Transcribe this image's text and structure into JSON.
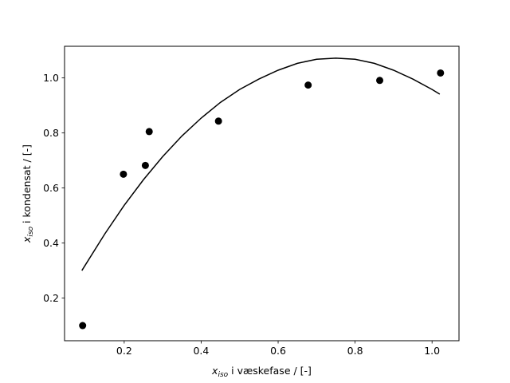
{
  "chart_data": {
    "type": "scatter",
    "title": "",
    "xlabel": {
      "var": "x",
      "sub": "iso",
      "rest": " i væskefase / [-]"
    },
    "ylabel": {
      "var": "x",
      "sub": "iso",
      "rest": " i kondensat / [-]"
    },
    "xlim": [
      0.045,
      1.07
    ],
    "ylim": [
      0.045,
      1.115
    ],
    "xticks": [
      0.2,
      0.4,
      0.6,
      0.8,
      1.0
    ],
    "yticks": [
      0.2,
      0.4,
      0.6,
      0.8,
      1.0
    ],
    "xtick_labels": [
      "0.2",
      "0.4",
      "0.6",
      "0.8",
      "1.0"
    ],
    "ytick_labels": [
      "0.2",
      "0.4",
      "0.6",
      "0.8",
      "1.0"
    ],
    "grid": false,
    "legend": false,
    "colors": {
      "points": "#000000",
      "curve": "#000000",
      "axes": "#000000"
    },
    "series": [
      {
        "type": "scatter",
        "x": [
          0.092,
          0.198,
          0.255,
          0.265,
          0.445,
          0.678,
          0.864,
          1.022
        ],
        "y": [
          0.1,
          0.65,
          0.682,
          0.805,
          0.843,
          0.974,
          0.991,
          1.018
        ]
      },
      {
        "type": "line",
        "x": [
          0.09,
          0.15,
          0.2,
          0.25,
          0.3,
          0.35,
          0.4,
          0.45,
          0.5,
          0.55,
          0.6,
          0.65,
          0.7,
          0.75,
          0.8,
          0.85,
          0.9,
          0.95,
          1.0,
          1.02
        ],
        "y": [
          0.3,
          0.434,
          0.537,
          0.63,
          0.714,
          0.789,
          0.854,
          0.911,
          0.958,
          0.996,
          1.028,
          1.053,
          1.068,
          1.072,
          1.068,
          1.053,
          1.028,
          0.996,
          0.958,
          0.941
        ]
      }
    ]
  }
}
